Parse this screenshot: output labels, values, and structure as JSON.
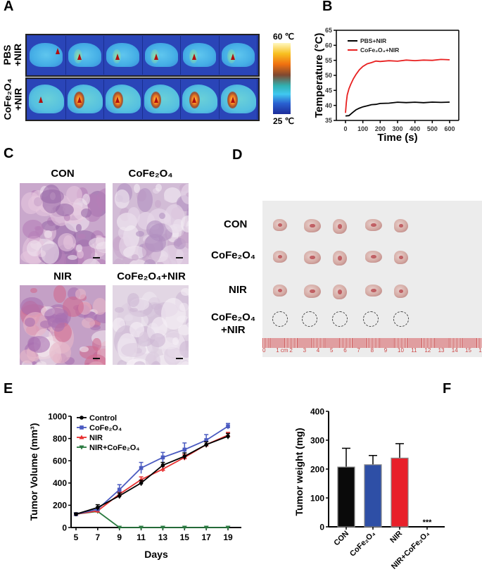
{
  "panels": {
    "a": "A",
    "b": "B",
    "c": "C",
    "d": "D",
    "e": "E",
    "f": "F"
  },
  "panel_a": {
    "row1_label_1": "PBS",
    "row1_label_2": "+NIR",
    "row2_label_1": "CoFe₂O₄",
    "row2_label_2": "+NIR",
    "colorbar_max": "60 ℃",
    "colorbar_min": "25 ℃",
    "colors": {
      "cold": "#1c2c9a",
      "mid": "#40c8f0",
      "hot": "#f07010",
      "max": "#fff8c0"
    }
  },
  "panel_c": {
    "labels": [
      "CON",
      "CoFe₂O₄",
      "NIR",
      "CoFe₂O₄+NIR"
    ]
  },
  "panel_d": {
    "row_labels": [
      "CON",
      "CoFe₂O₄",
      "NIR",
      "CoFe₂O₄"
    ],
    "row4_label_2": "+NIR",
    "ruler_labels": [
      "0",
      "1 cm",
      "2",
      "3",
      "4",
      "5",
      "6",
      "7",
      "8",
      "9",
      "10",
      "11",
      "12",
      "13",
      "14",
      "15",
      "16"
    ]
  },
  "chart_data": [
    {
      "id": "B",
      "type": "line",
      "xlabel": "Time (s)",
      "ylabel": "Temperature (°C)",
      "xlim": [
        0,
        600
      ],
      "ylim": [
        35,
        65
      ],
      "xticks": [
        0,
        100,
        200,
        300,
        400,
        500,
        600
      ],
      "yticks": [
        35,
        40,
        45,
        50,
        55,
        60,
        65
      ],
      "legend": "top-left",
      "grid": false,
      "series": [
        {
          "name": "PBS+NIR",
          "color": "#000000",
          "x": [
            0,
            20,
            40,
            60,
            80,
            100,
            125,
            150,
            175,
            200,
            250,
            300,
            350,
            400,
            450,
            500,
            550,
            600
          ],
          "y": [
            36.5,
            36.6,
            37.6,
            38.5,
            39.1,
            39.5,
            39.9,
            40.2,
            40.4,
            40.6,
            40.8,
            41.0,
            41.0,
            41.0,
            41.0,
            41.0,
            41.1,
            41.0
          ]
        },
        {
          "name": "CoFe₂O₄+NIR",
          "color": "#e82020",
          "x": [
            0,
            5,
            10,
            20,
            30,
            45,
            60,
            80,
            100,
            125,
            150,
            175,
            200,
            250,
            300,
            350,
            400,
            450,
            500,
            550,
            600
          ],
          "y": [
            37.5,
            41,
            43.5,
            45.5,
            47,
            48.8,
            50.3,
            51.8,
            53,
            53.8,
            54.3,
            54.7,
            54.7,
            54.8,
            54.8,
            55.0,
            55.0,
            55.0,
            55.1,
            55.2,
            55.3
          ]
        }
      ]
    },
    {
      "id": "E",
      "type": "line",
      "xlabel": "Days",
      "ylabel": "Tumor Volume (mm³)",
      "xlim": [
        4,
        20
      ],
      "ylim": [
        0,
        1000
      ],
      "xticks": [
        5,
        7,
        9,
        11,
        13,
        15,
        17,
        19
      ],
      "yticks": [
        0,
        200,
        400,
        600,
        800,
        1000
      ],
      "legend": "top-left",
      "grid": false,
      "x": [
        5,
        7,
        9,
        11,
        13,
        15,
        17,
        19
      ],
      "series": [
        {
          "name": "Control",
          "color": "#000000",
          "marker": "circle",
          "values": [
            120,
            180,
            285,
            400,
            560,
            640,
            745,
            820
          ],
          "errors": [
            10,
            25,
            25,
            25,
            25,
            30,
            25,
            25
          ]
        },
        {
          "name": "CoFe₂O₄",
          "color": "#4a5ac0",
          "marker": "square",
          "values": [
            120,
            165,
            340,
            535,
            630,
            700,
            785,
            910
          ],
          "errors": [
            10,
            15,
            45,
            50,
            45,
            60,
            50,
            25
          ]
        },
        {
          "name": "NIR",
          "color": "#e83030",
          "marker": "triangle-up",
          "values": [
            120,
            150,
            300,
            430,
            525,
            630,
            745,
            830
          ],
          "errors": [
            10,
            15,
            20,
            25,
            25,
            25,
            25,
            25
          ]
        },
        {
          "name": "NIR+CoFe₂O₄",
          "color": "#2a7a40",
          "marker": "triangle-down",
          "values": [
            120,
            145,
            0,
            0,
            0,
            0,
            0,
            0
          ],
          "errors": [
            0,
            0,
            0,
            0,
            0,
            0,
            0,
            0
          ]
        }
      ]
    },
    {
      "id": "F",
      "type": "bar",
      "xlabel": "",
      "ylabel": "Tumor weight (mg)",
      "ylim": [
        0,
        400
      ],
      "yticks": [
        0,
        100,
        200,
        300,
        400
      ],
      "grid": false,
      "categories": [
        "CON",
        "CoFe₂O₄",
        "NIR",
        "NIR+CoFe₂O₄"
      ],
      "values": [
        207,
        215,
        238,
        0
      ],
      "errors": [
        65,
        32,
        50,
        0
      ],
      "colors": [
        "#0a0a0a",
        "#2e4fa6",
        "#e8202a",
        "#ffffff"
      ],
      "annotations": [
        {
          "category": "NIR+CoFe₂O₄",
          "text": "***"
        }
      ]
    }
  ]
}
